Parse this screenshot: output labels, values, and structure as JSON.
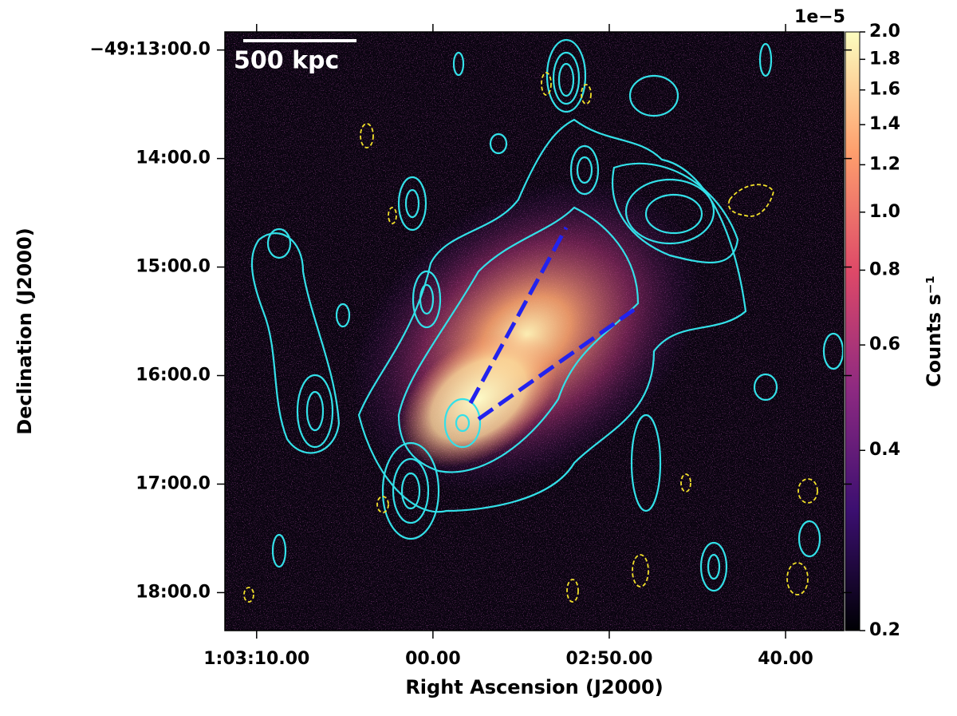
{
  "chart_data": {
    "type": "image",
    "xlabel": "Right Ascension (J2000)",
    "ylabel": "Declination (J2000)",
    "xlim": [
      3791.8,
      3756.7
    ],
    "xticks": [
      {
        "value": 3790,
        "label": "1:03:10.00"
      },
      {
        "value": 3780,
        "label": "00.00"
      },
      {
        "value": 3770,
        "label": "02:50.00"
      },
      {
        "value": 3760,
        "label": "40.00"
      }
    ],
    "ylim": [
      -177501,
      -177170
    ],
    "yticks": [
      {
        "value": -177180,
        "label": "−49:13:00.0"
      },
      {
        "value": -177240,
        "label": "14:00.0"
      },
      {
        "value": -177300,
        "label": "15:00.0"
      },
      {
        "value": -177360,
        "label": "16:00.0"
      },
      {
        "value": -177420,
        "label": "17:00.0"
      },
      {
        "value": -177480,
        "label": "18:00.0"
      }
    ],
    "scalebar_label": "500 kpc",
    "colorbar": {
      "label": "Counts s⁻¹",
      "offset_label": "1e−5",
      "log": true,
      "lim": [
        0.2,
        2.0
      ],
      "ticks": [
        {
          "value": 2.0,
          "label": "2.0"
        },
        {
          "value": 1.8,
          "label": "1.8"
        },
        {
          "value": 1.6,
          "label": "1.6"
        },
        {
          "value": 1.4,
          "label": "1.4"
        },
        {
          "value": 1.2,
          "label": "1.2"
        },
        {
          "value": 1.0,
          "label": "1.0"
        },
        {
          "value": 0.8,
          "label": "0.8"
        },
        {
          "value": 0.6,
          "label": "0.6"
        },
        {
          "value": 0.4,
          "label": "0.4"
        },
        {
          "value": 0.2,
          "label": "0.2"
        }
      ],
      "colors": [
        "#000004",
        "#3b0f70",
        "#8c2981",
        "#de4968",
        "#fe9f6d",
        "#fcfdbf"
      ]
    }
  }
}
